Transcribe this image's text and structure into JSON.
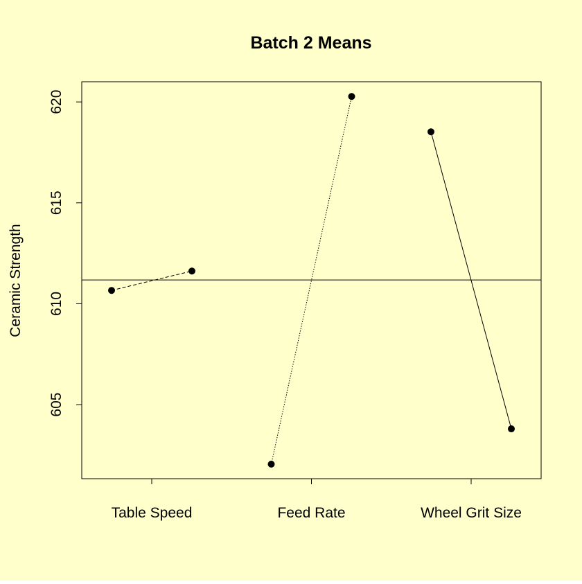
{
  "chart_data": {
    "type": "line",
    "title": "Batch 2 Means",
    "y_label": "Ceramic Strength",
    "groups": [
      {
        "label": "Table Speed",
        "values": [
          610.66,
          611.62
        ],
        "dash": "dashed"
      },
      {
        "label": "Feed Rate",
        "values": [
          602.05,
          620.27
        ],
        "dash": "dotted"
      },
      {
        "label": "Wheel Grit Size",
        "values": [
          618.52,
          603.8
        ],
        "dash": "solid"
      }
    ],
    "reference_line": 611.18,
    "ylim": [
      601.33,
      621.0
    ],
    "yticks": [
      605,
      610,
      615,
      620
    ],
    "color": "#000000",
    "background": "#ffffcc"
  }
}
